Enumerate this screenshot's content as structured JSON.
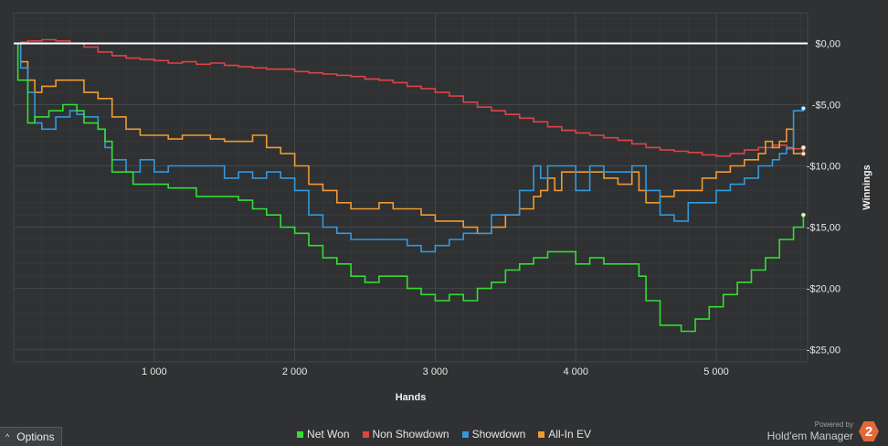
{
  "options": {
    "label": "Options",
    "caret": "^"
  },
  "brand": {
    "powered_by": "Powered by",
    "name": "Hold'em Manager",
    "logo_text": "2"
  },
  "colors": {
    "background": "#2f3133",
    "grid": "#43474a",
    "zero_line": "#ffffff"
  },
  "chart_data": {
    "type": "line",
    "xlabel": "Hands",
    "ylabel": "Winnings",
    "xlim": [
      0,
      5650
    ],
    "ylim": [
      -26,
      2.5
    ],
    "x_ticks": [
      1000,
      2000,
      3000,
      4000,
      5000
    ],
    "x_tick_labels": [
      "1 000",
      "2 000",
      "3 000",
      "4 000",
      "5 000"
    ],
    "y_ticks": [
      0,
      -5,
      -10,
      -15,
      -20,
      -25
    ],
    "y_tick_labels": [
      "$0,00",
      "-$5,00",
      "-$10,00",
      "-$15,00",
      "-$20,00",
      "-$25,00"
    ],
    "grid": true,
    "legend_position": "bottom",
    "zero_line": true,
    "series": [
      {
        "name": "Net Won",
        "color": "#33dd33",
        "x": [
          0,
          30,
          100,
          150,
          250,
          350,
          450,
          500,
          600,
          650,
          700,
          800,
          850,
          900,
          1000,
          1100,
          1200,
          1300,
          1400,
          1500,
          1600,
          1700,
          1800,
          1900,
          2000,
          2100,
          2200,
          2300,
          2400,
          2500,
          2600,
          2700,
          2800,
          2900,
          3000,
          3100,
          3200,
          3300,
          3400,
          3500,
          3600,
          3700,
          3800,
          3900,
          4000,
          4100,
          4200,
          4300,
          4400,
          4450,
          4500,
          4600,
          4700,
          4750,
          4850,
          4950,
          5050,
          5150,
          5250,
          5350,
          5450,
          5550,
          5620
        ],
        "y": [
          0,
          -3,
          -6.5,
          -6,
          -5.5,
          -5,
          -5.5,
          -6.5,
          -7,
          -8,
          -10.5,
          -10.5,
          -11.5,
          -11.5,
          -11.5,
          -11.8,
          -11.8,
          -12.5,
          -12.5,
          -12.5,
          -12.8,
          -13.5,
          -14,
          -15,
          -15.5,
          -16.5,
          -17.5,
          -18,
          -19,
          -19.5,
          -19,
          -19,
          -20,
          -20.5,
          -21,
          -20.5,
          -21,
          -20,
          -19.5,
          -18.5,
          -18,
          -17.5,
          -17,
          -17,
          -18,
          -17.5,
          -18,
          -18,
          -18,
          -19,
          -21,
          -23,
          -23,
          -23.5,
          -22.5,
          -21.5,
          -20.5,
          -19.5,
          -18.5,
          -17.5,
          -16,
          -15,
          -14
        ]
      },
      {
        "name": "Non Showdown",
        "color": "#dd4444",
        "x": [
          0,
          50,
          100,
          200,
          300,
          400,
          500,
          600,
          700,
          800,
          900,
          1000,
          1100,
          1200,
          1300,
          1400,
          1500,
          1600,
          1700,
          1800,
          1900,
          2000,
          2100,
          2200,
          2300,
          2400,
          2500,
          2600,
          2700,
          2800,
          2900,
          3000,
          3100,
          3200,
          3300,
          3400,
          3500,
          3600,
          3700,
          3800,
          3900,
          4000,
          4100,
          4200,
          4300,
          4400,
          4500,
          4600,
          4700,
          4800,
          4900,
          5000,
          5100,
          5200,
          5300,
          5400,
          5500,
          5620
        ],
        "y": [
          0,
          0.1,
          0.2,
          0.3,
          0.2,
          0,
          -0.3,
          -0.7,
          -1,
          -1.2,
          -1.3,
          -1.4,
          -1.6,
          -1.5,
          -1.7,
          -1.6,
          -1.8,
          -1.9,
          -2,
          -2.1,
          -2.1,
          -2.3,
          -2.4,
          -2.5,
          -2.6,
          -2.7,
          -2.9,
          -3,
          -3.2,
          -3.5,
          -3.7,
          -4,
          -4.3,
          -4.8,
          -5.2,
          -5.5,
          -5.8,
          -6.1,
          -6.4,
          -6.8,
          -7.1,
          -7.3,
          -7.5,
          -7.7,
          -7.9,
          -8.2,
          -8.5,
          -8.7,
          -8.8,
          -8.9,
          -9.1,
          -9.2,
          -9,
          -8.7,
          -8.5,
          -8.3,
          -8.6,
          -9
        ]
      },
      {
        "name": "Showdown",
        "color": "#3399dd",
        "x": [
          0,
          50,
          100,
          150,
          200,
          300,
          400,
          450,
          500,
          600,
          650,
          700,
          800,
          900,
          1000,
          1100,
          1200,
          1300,
          1400,
          1500,
          1600,
          1700,
          1800,
          1900,
          2000,
          2100,
          2200,
          2300,
          2400,
          2500,
          2600,
          2700,
          2800,
          2900,
          3000,
          3100,
          3200,
          3300,
          3400,
          3500,
          3600,
          3700,
          3750,
          3800,
          3900,
          4000,
          4100,
          4200,
          4300,
          4400,
          4500,
          4600,
          4700,
          4800,
          4900,
          5000,
          5100,
          5200,
          5300,
          5400,
          5450,
          5500,
          5550,
          5620
        ],
        "y": [
          0,
          -2,
          -4,
          -6.5,
          -7,
          -6,
          -5.5,
          -5.8,
          -6,
          -7,
          -8.5,
          -9.5,
          -10.5,
          -9.5,
          -10.5,
          -10,
          -10,
          -10,
          -10,
          -11,
          -10.5,
          -11,
          -10.5,
          -11,
          -12,
          -14,
          -15,
          -15.5,
          -16,
          -16,
          -16,
          -16,
          -16.5,
          -17,
          -16.5,
          -16,
          -15.5,
          -15.5,
          -14,
          -14,
          -12,
          -10,
          -11,
          -10,
          -10,
          -12,
          -10,
          -10.5,
          -10.5,
          -10,
          -12,
          -14,
          -14.5,
          -13,
          -13,
          -12,
          -11.5,
          -11,
          -10,
          -9.5,
          -9,
          -8.5,
          -5.5,
          -5.3
        ]
      },
      {
        "name": "All-In EV",
        "color": "#f09a33",
        "x": [
          0,
          50,
          100,
          150,
          200,
          300,
          400,
          500,
          600,
          700,
          800,
          900,
          1000,
          1100,
          1200,
          1300,
          1400,
          1500,
          1600,
          1700,
          1800,
          1900,
          2000,
          2100,
          2200,
          2300,
          2400,
          2500,
          2600,
          2700,
          2800,
          2900,
          3000,
          3100,
          3200,
          3300,
          3400,
          3500,
          3600,
          3700,
          3750,
          3800,
          3850,
          3900,
          4000,
          4100,
          4200,
          4300,
          4400,
          4450,
          4500,
          4600,
          4700,
          4800,
          4900,
          5000,
          5100,
          5200,
          5300,
          5350,
          5400,
          5450,
          5500,
          5550,
          5620
        ],
        "y": [
          0,
          -1.5,
          -3,
          -4,
          -3.5,
          -3,
          -3,
          -4,
          -4.5,
          -6,
          -7,
          -7.5,
          -7.5,
          -7.8,
          -7.5,
          -7.5,
          -7.8,
          -8,
          -8,
          -7.5,
          -8.5,
          -9,
          -10,
          -11.5,
          -12,
          -13,
          -13.5,
          -13.5,
          -13,
          -13.5,
          -13.5,
          -14,
          -14.5,
          -14.5,
          -15,
          -15.5,
          -15,
          -14,
          -13.5,
          -12.5,
          -12,
          -11,
          -12,
          -10.5,
          -10.5,
          -10.5,
          -11,
          -11.5,
          -10.5,
          -12,
          -13,
          -12.5,
          -12,
          -12,
          -11,
          -10.5,
          -10,
          -9.5,
          -9,
          -8,
          -8.5,
          -8,
          -7,
          -9,
          -8.5
        ]
      }
    ]
  }
}
